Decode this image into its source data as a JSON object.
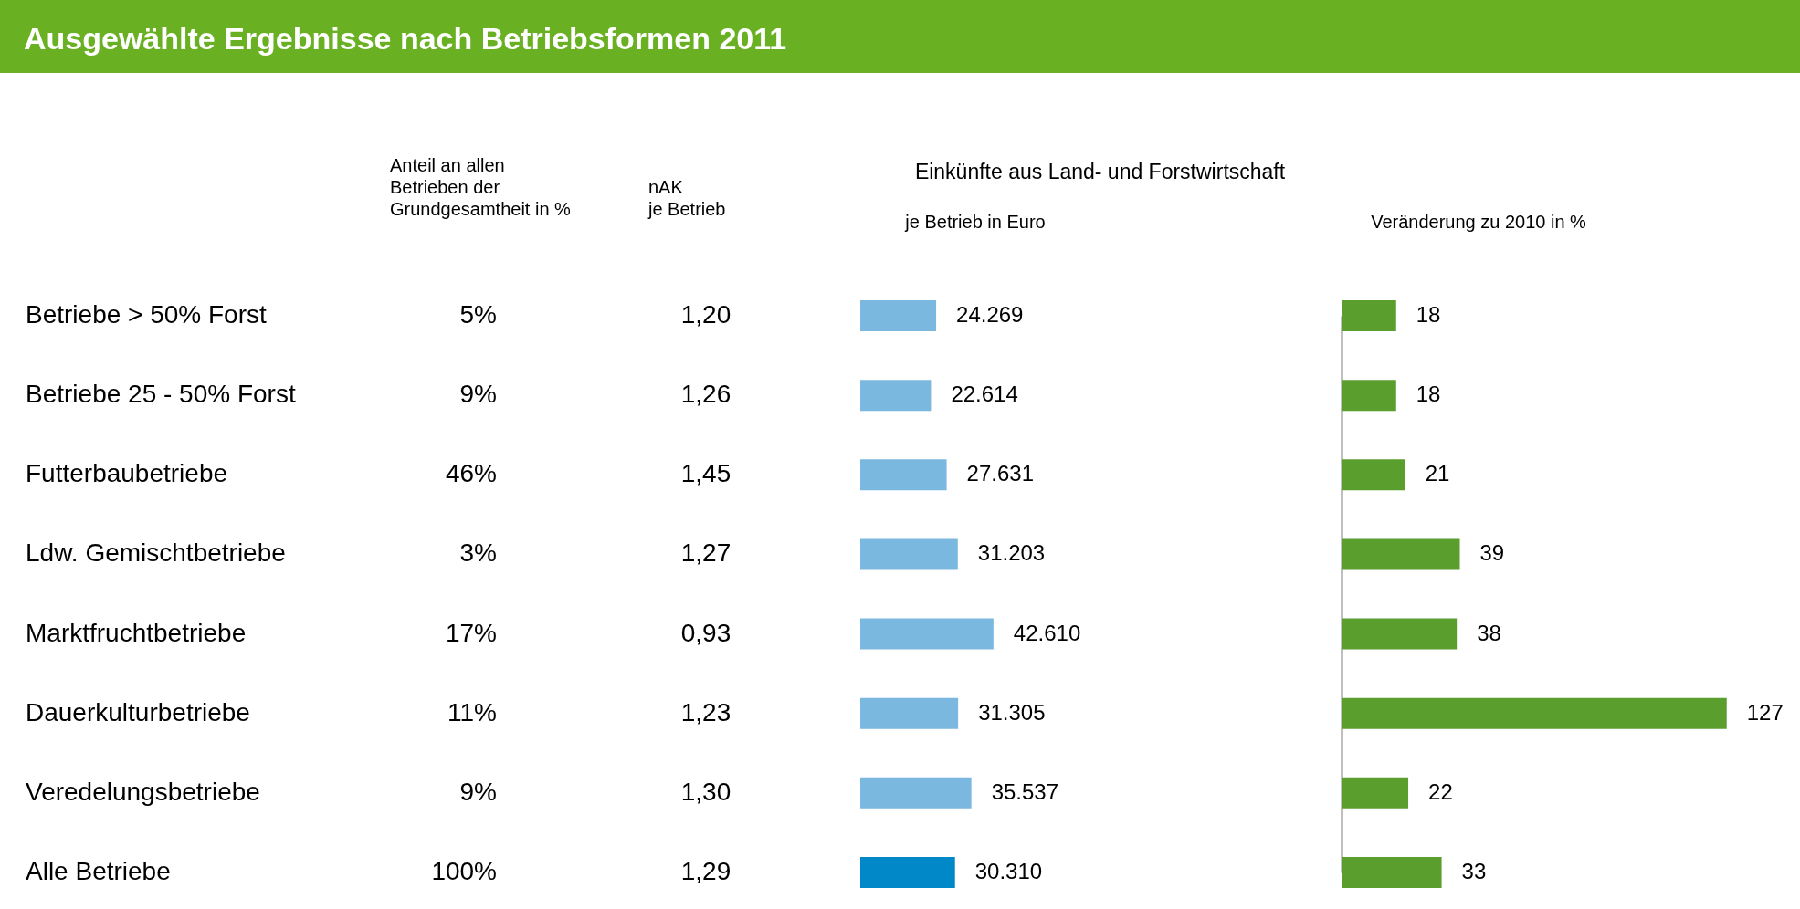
{
  "chart_data": [
    {
      "type": "other",
      "title": "Ausgewählte Ergebnisse nach Betriebsformen 2011",
      "categories": [
        "Betriebe > 50% Forst",
        "Betriebe 25 - 50% Forst",
        "Futterbaubetriebe",
        "Ldw. Gemischtbetriebe",
        "Marktfruchtbetriebe",
        "Dauerkulturbetriebe",
        "Veredelungsbetriebe",
        "Alle Betriebe"
      ],
      "series": [
        {
          "name": "Anteil an allen\nBetrieben der\nGrundgesamtheit in %",
          "values": [
            5,
            9,
            46,
            3,
            17,
            11,
            9,
            100
          ],
          "value_labels": [
            "5%",
            "9%",
            "46%",
            "3%",
            "17%",
            "11%",
            "9%",
            "100%"
          ]
        },
        {
          "name": "nAK\nje Betrieb",
          "values": [
            1.2,
            1.26,
            1.45,
            1.27,
            0.93,
            1.23,
            1.3,
            1.29
          ],
          "value_labels": [
            "1,20",
            "1,26",
            "1,45",
            "1,27",
            "0,93",
            "1,23",
            "1,30",
            "1,29"
          ]
        }
      ]
    },
    {
      "type": "bar",
      "orientation": "horizontal",
      "title": "Einkünfte aus Land- und Forstwirtschaft",
      "xlabel": "je Betrieb in Euro",
      "categories": [
        null,
        null,
        null,
        null,
        null,
        null,
        null,
        null
      ],
      "values": [
        24269,
        22614,
        27631,
        31203,
        42610,
        31305,
        35537,
        30310
      ],
      "value_labels": [
        "24.269",
        "22.614",
        "27.631",
        "31.203",
        "42.610",
        "31.305",
        "35.537",
        "30.310"
      ],
      "colors": [
        "#7ab8e0",
        "#7ab8e0",
        "#7ab8e0",
        "#7ab8e0",
        "#7ab8e0",
        "#7ab8e0",
        "#7ab8e0",
        "#0088c8"
      ]
    },
    {
      "type": "bar",
      "orientation": "horizontal",
      "xlabel": "Veränderung zu 2010 in %",
      "categories": [
        null,
        null,
        null,
        null,
        null,
        null,
        null,
        null
      ],
      "values": [
        18,
        18,
        21,
        39,
        38,
        127,
        22,
        33
      ],
      "color": "#5a9e2e",
      "data_labels": true
    }
  ]
}
